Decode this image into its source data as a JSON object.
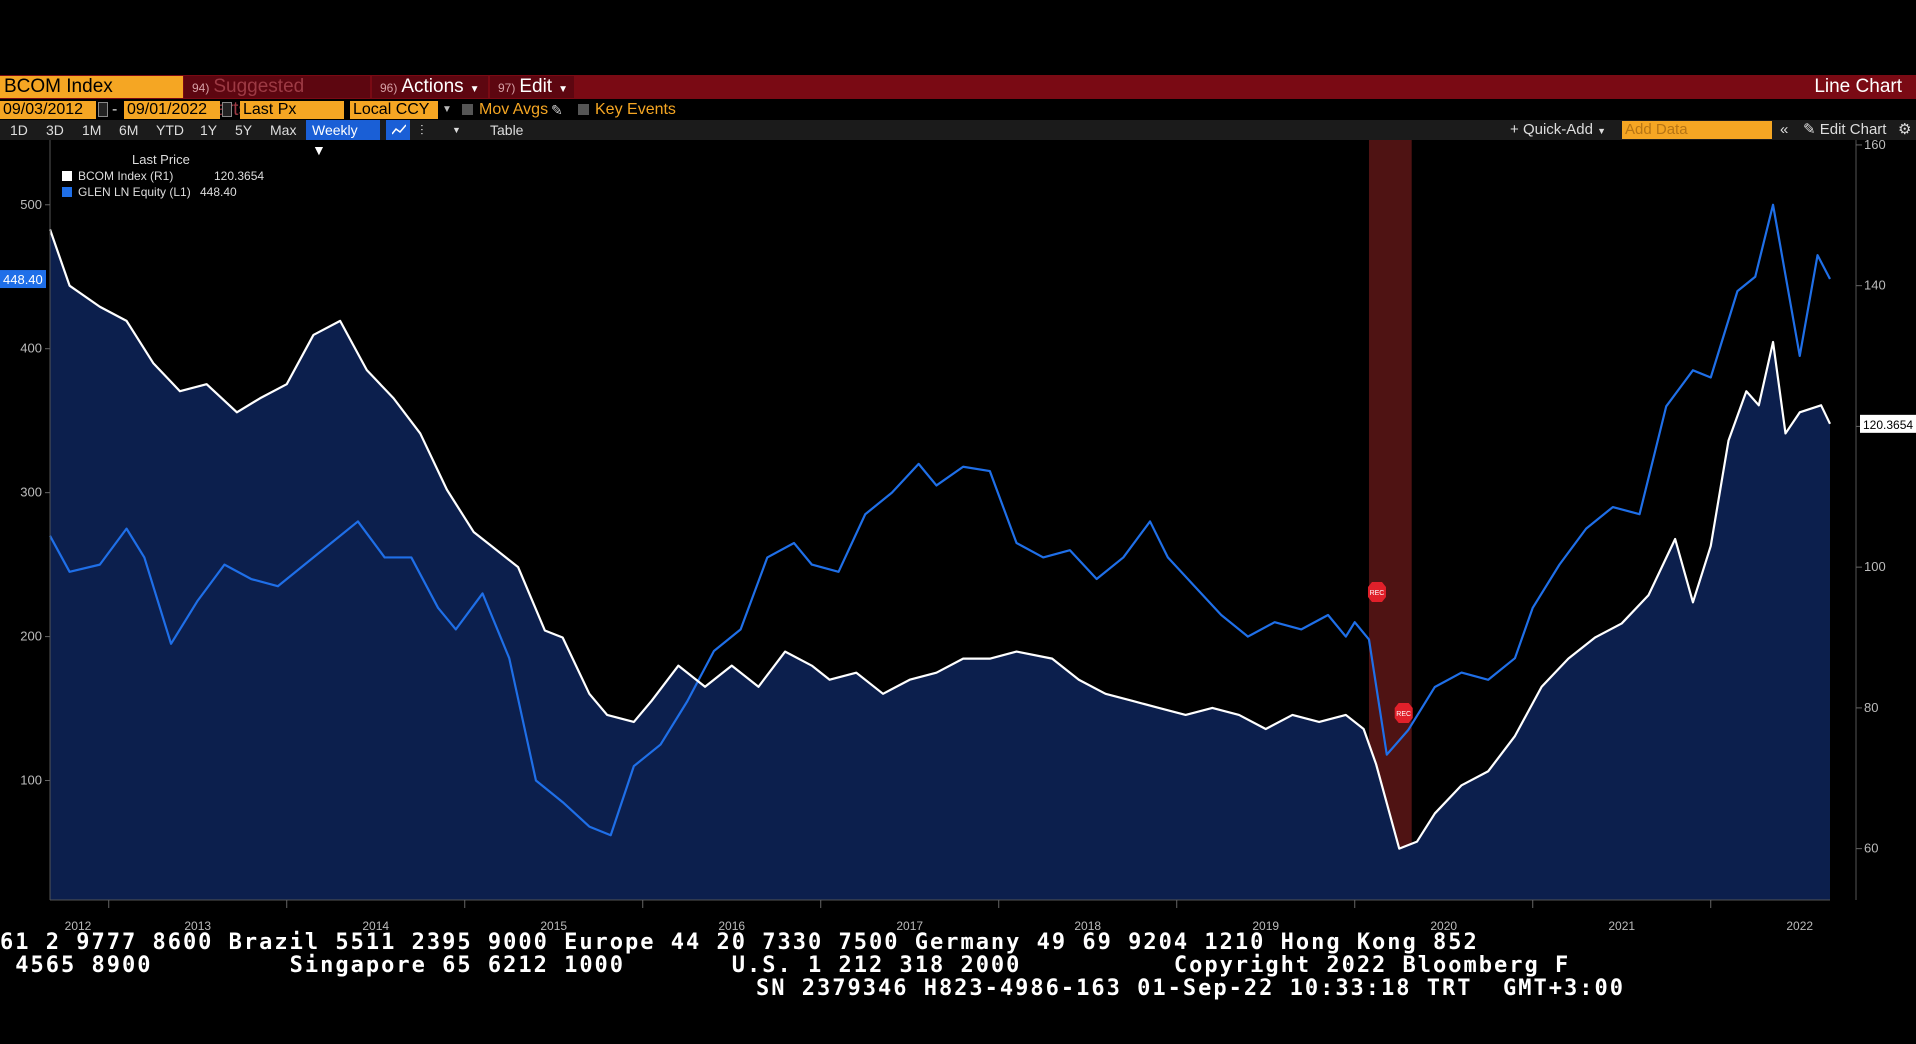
{
  "header": {
    "ticker": "BCOM Index",
    "suggested": "Suggested Charts",
    "suggested_num": "94)",
    "actions": "Actions",
    "actions_num": "96)",
    "edit": "Edit",
    "edit_num": "97)",
    "chart_type": "Line Chart"
  },
  "controls": {
    "start_date": "09/03/2012",
    "end_date": "09/01/2022",
    "field": "Last Px",
    "currency": "Local CCY",
    "mov_avgs": "Mov Avgs",
    "key_events": "Key Events",
    "ranges": [
      "1D",
      "3D",
      "1M",
      "6M",
      "YTD",
      "1Y",
      "5Y",
      "Max"
    ],
    "frequency": "Weekly",
    "table": "Table",
    "quick_add": "Quick-Add",
    "add_data_placeholder": "Add Data",
    "edit_chart": "Edit Chart"
  },
  "colors": {
    "bcom": "#ffffff",
    "glen": "#1f6fe8",
    "area": "#0c1f4d",
    "recession": "#6a1a1a",
    "menu": "#7a0a14",
    "accent": "#f5a623"
  },
  "chart_data": {
    "type": "line",
    "legend_title": "Last Price",
    "legend_position": "top-left",
    "x_labels": [
      "2012",
      "2013",
      "2014",
      "2015",
      "2016",
      "2017",
      "2018",
      "2019",
      "2020",
      "2021",
      "2022"
    ],
    "x_range": [
      2012.67,
      2022.67
    ],
    "left_axis": {
      "ticks": [
        100,
        200,
        300,
        400,
        500
      ],
      "range": [
        17,
        545
      ]
    },
    "right_axis": {
      "ticks": [
        60,
        80,
        100,
        120,
        140,
        160
      ],
      "range": [
        52.7,
        160.7
      ]
    },
    "recession": {
      "start": 2020.08,
      "end": 2020.32,
      "marker": "REC"
    },
    "series": [
      {
        "name": "BCOM Index",
        "axis_label": "(R1)",
        "axis": "right",
        "last_value": "120.3654",
        "points": [
          [
            2012.67,
            148
          ],
          [
            2012.78,
            140
          ],
          [
            2012.95,
            137
          ],
          [
            2013.1,
            135
          ],
          [
            2013.25,
            129
          ],
          [
            2013.4,
            125
          ],
          [
            2013.55,
            126
          ],
          [
            2013.72,
            122
          ],
          [
            2013.85,
            124
          ],
          [
            2014.0,
            126
          ],
          [
            2014.15,
            133
          ],
          [
            2014.3,
            135
          ],
          [
            2014.45,
            128
          ],
          [
            2014.6,
            124
          ],
          [
            2014.75,
            119
          ],
          [
            2014.9,
            111
          ],
          [
            2015.05,
            105
          ],
          [
            2015.15,
            103
          ],
          [
            2015.3,
            100
          ],
          [
            2015.45,
            91
          ],
          [
            2015.55,
            90
          ],
          [
            2015.7,
            82
          ],
          [
            2015.8,
            79
          ],
          [
            2015.95,
            78
          ],
          [
            2016.05,
            81
          ],
          [
            2016.2,
            86
          ],
          [
            2016.35,
            83
          ],
          [
            2016.5,
            86
          ],
          [
            2016.65,
            83
          ],
          [
            2016.8,
            88
          ],
          [
            2016.95,
            86
          ],
          [
            2017.05,
            84
          ],
          [
            2017.2,
            85
          ],
          [
            2017.35,
            82
          ],
          [
            2017.5,
            84
          ],
          [
            2017.65,
            85
          ],
          [
            2017.8,
            87
          ],
          [
            2017.95,
            87
          ],
          [
            2018.1,
            88
          ],
          [
            2018.3,
            87
          ],
          [
            2018.45,
            84
          ],
          [
            2018.6,
            82
          ],
          [
            2018.75,
            81
          ],
          [
            2018.9,
            80
          ],
          [
            2019.05,
            79
          ],
          [
            2019.2,
            80
          ],
          [
            2019.35,
            79
          ],
          [
            2019.5,
            77
          ],
          [
            2019.65,
            79
          ],
          [
            2019.8,
            78
          ],
          [
            2019.95,
            79
          ],
          [
            2020.05,
            77
          ],
          [
            2020.12,
            72
          ],
          [
            2020.25,
            60
          ],
          [
            2020.35,
            61
          ],
          [
            2020.45,
            65
          ],
          [
            2020.6,
            69
          ],
          [
            2020.75,
            71
          ],
          [
            2020.9,
            76
          ],
          [
            2021.05,
            83
          ],
          [
            2021.2,
            87
          ],
          [
            2021.35,
            90
          ],
          [
            2021.5,
            92
          ],
          [
            2021.65,
            96
          ],
          [
            2021.8,
            104
          ],
          [
            2021.9,
            95
          ],
          [
            2022.0,
            103
          ],
          [
            2022.1,
            118
          ],
          [
            2022.2,
            125
          ],
          [
            2022.27,
            123
          ],
          [
            2022.35,
            132
          ],
          [
            2022.42,
            119
          ],
          [
            2022.5,
            122
          ],
          [
            2022.62,
            123
          ],
          [
            2022.67,
            120.37
          ]
        ]
      },
      {
        "name": "GLEN LN Equity",
        "axis_label": "(L1)",
        "axis": "left",
        "last_value": "448.40",
        "points": [
          [
            2012.67,
            270
          ],
          [
            2012.78,
            245
          ],
          [
            2012.95,
            250
          ],
          [
            2013.1,
            275
          ],
          [
            2013.2,
            255
          ],
          [
            2013.35,
            195
          ],
          [
            2013.5,
            225
          ],
          [
            2013.65,
            250
          ],
          [
            2013.8,
            240
          ],
          [
            2013.95,
            235
          ],
          [
            2014.1,
            250
          ],
          [
            2014.25,
            265
          ],
          [
            2014.4,
            280
          ],
          [
            2014.55,
            255
          ],
          [
            2014.7,
            255
          ],
          [
            2014.85,
            220
          ],
          [
            2014.95,
            205
          ],
          [
            2015.1,
            230
          ],
          [
            2015.25,
            185
          ],
          [
            2015.4,
            100
          ],
          [
            2015.55,
            85
          ],
          [
            2015.7,
            68
          ],
          [
            2015.82,
            62
          ],
          [
            2015.95,
            110
          ],
          [
            2016.1,
            125
          ],
          [
            2016.25,
            155
          ],
          [
            2016.4,
            190
          ],
          [
            2016.55,
            205
          ],
          [
            2016.7,
            255
          ],
          [
            2016.85,
            265
          ],
          [
            2016.95,
            250
          ],
          [
            2017.1,
            245
          ],
          [
            2017.25,
            285
          ],
          [
            2017.4,
            300
          ],
          [
            2017.55,
            320
          ],
          [
            2017.65,
            305
          ],
          [
            2017.8,
            318
          ],
          [
            2017.95,
            315
          ],
          [
            2018.1,
            265
          ],
          [
            2018.25,
            255
          ],
          [
            2018.4,
            260
          ],
          [
            2018.55,
            240
          ],
          [
            2018.7,
            255
          ],
          [
            2018.85,
            280
          ],
          [
            2018.95,
            255
          ],
          [
            2019.1,
            235
          ],
          [
            2019.25,
            215
          ],
          [
            2019.4,
            200
          ],
          [
            2019.55,
            210
          ],
          [
            2019.7,
            205
          ],
          [
            2019.85,
            215
          ],
          [
            2019.95,
            200
          ],
          [
            2020.0,
            210
          ],
          [
            2020.08,
            198
          ],
          [
            2020.18,
            118
          ],
          [
            2020.3,
            135
          ],
          [
            2020.45,
            165
          ],
          [
            2020.6,
            175
          ],
          [
            2020.75,
            170
          ],
          [
            2020.9,
            185
          ],
          [
            2021.0,
            220
          ],
          [
            2021.15,
            250
          ],
          [
            2021.3,
            275
          ],
          [
            2021.45,
            290
          ],
          [
            2021.6,
            285
          ],
          [
            2021.75,
            360
          ],
          [
            2021.9,
            385
          ],
          [
            2022.0,
            380
          ],
          [
            2022.15,
            440
          ],
          [
            2022.25,
            450
          ],
          [
            2022.35,
            500
          ],
          [
            2022.45,
            430
          ],
          [
            2022.5,
            395
          ],
          [
            2022.6,
            465
          ],
          [
            2022.67,
            448.4
          ]
        ]
      }
    ]
  },
  "footer": {
    "line1": "61 2 9777 8600 Brazil 5511 2395 9000 Europe 44 20 7330 7500 Germany 49 69 9204 1210 Hong Kong 852",
    "line2": " 4565 8900         Singapore 65 6212 1000       U.S. 1 212 318 2000          Copyright 2022 Bloomberg F",
    "line3": "SN 2379346 H823-4986-163 01-Sep-22 10:33:18 TRT  GMT+3:00"
  }
}
